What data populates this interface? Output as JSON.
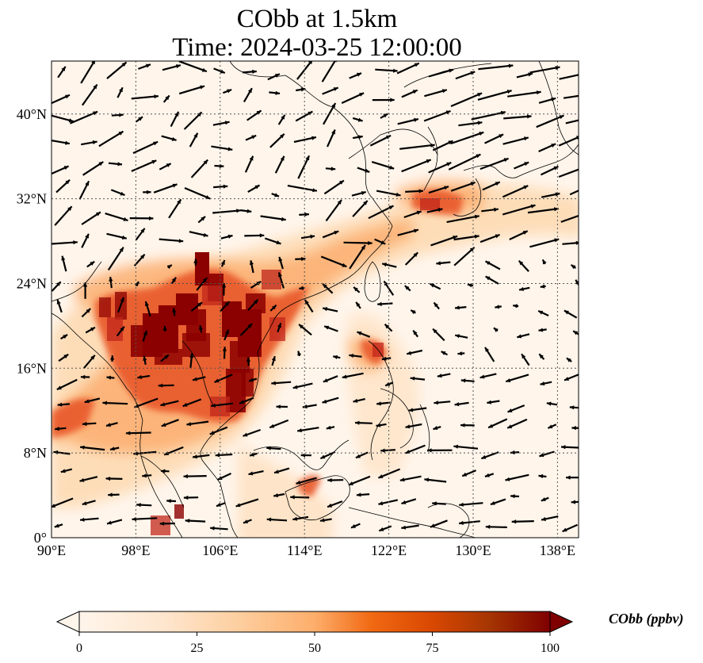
{
  "title": "CObb at 1.5km",
  "subtitle": "Time: 2024-03-25 12:00:00",
  "map": {
    "lon_range": [
      90,
      140
    ],
    "lat_range": [
      0,
      45
    ],
    "x_ticks": [
      90,
      98,
      106,
      114,
      122,
      130,
      138
    ],
    "x_tick_labels": [
      "90°E",
      "98°E",
      "106°E",
      "114°E",
      "122°E",
      "130°E",
      "138°E"
    ],
    "y_ticks": [
      0,
      8,
      16,
      24,
      32,
      40
    ],
    "y_tick_labels": [
      "0°",
      "8°N",
      "16°N",
      "24°N",
      "32°N",
      "40°N"
    ],
    "grid": true,
    "grid_style": "dotted",
    "wind_vectors": "shown"
  },
  "colorbar": {
    "label": "CObb (ppbv)",
    "min": 0,
    "max": 100,
    "ticks": [
      0,
      25,
      50,
      75,
      100
    ],
    "tick_labels": [
      "0",
      "25",
      "50",
      "75",
      "100"
    ],
    "colormap": [
      "#fff5eb",
      "#fdd49e",
      "#fdae6b",
      "#f16913",
      "#d94801",
      "#a63603",
      "#7f0000"
    ],
    "extend": "both"
  },
  "colors": {
    "background": "#fff5eb",
    "frame": "#000000",
    "coast": "#000000"
  }
}
